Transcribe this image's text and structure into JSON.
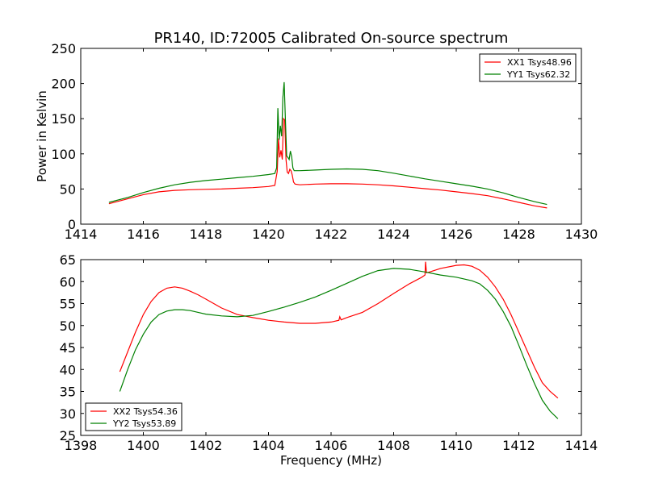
{
  "figure": {
    "title": "PR140, ID:72005 Calibrated On-source spectrum"
  },
  "colors": {
    "red": "#ff0000",
    "green": "#008000"
  },
  "chart_data": [
    {
      "type": "line",
      "title": "PR140, ID:72005 Calibrated On-source spectrum",
      "xlabel": "",
      "ylabel": "Power in Kelvin",
      "xlim": [
        1414,
        1430
      ],
      "ylim": [
        0,
        250
      ],
      "xticks": [
        "1414",
        "1416",
        "1418",
        "1420",
        "1422",
        "1424",
        "1426",
        "1428",
        "1430"
      ],
      "yticks": [
        "0",
        "50",
        "100",
        "150",
        "200",
        "250"
      ],
      "legend_position": "top-right",
      "grid": false,
      "series": [
        {
          "name": "XX1 Tsys48.96",
          "color": "#ff0000",
          "x": [
            1414.9,
            1415.5,
            1416,
            1416.5,
            1417,
            1417.5,
            1418,
            1418.5,
            1419,
            1419.5,
            1420,
            1420.2,
            1420.28,
            1420.32,
            1420.36,
            1420.4,
            1420.44,
            1420.48,
            1420.52,
            1420.56,
            1420.6,
            1420.64,
            1420.68,
            1420.72,
            1420.76,
            1420.8,
            1420.85,
            1421,
            1421.5,
            1422,
            1422.5,
            1423,
            1423.5,
            1424,
            1424.5,
            1425,
            1425.5,
            1426,
            1426.5,
            1427,
            1427.5,
            1428,
            1428.5,
            1428.9
          ],
          "y": [
            29,
            36,
            42,
            46,
            48,
            49,
            49.5,
            50,
            51,
            52,
            53.5,
            55,
            75,
            122,
            95,
            105,
            92,
            150,
            148,
            92,
            74,
            72,
            78,
            76,
            70,
            60,
            57,
            56,
            57,
            57.5,
            57.5,
            57,
            56,
            54.5,
            52.5,
            50.5,
            48.5,
            46,
            43.5,
            40.5,
            36,
            31,
            26,
            23
          ]
        },
        {
          "name": "YY1 Tsys62.32",
          "color": "#008000",
          "x": [
            1414.9,
            1415.5,
            1416,
            1416.5,
            1417,
            1417.5,
            1418,
            1418.5,
            1419,
            1419.5,
            1420,
            1420.2,
            1420.26,
            1420.3,
            1420.34,
            1420.38,
            1420.42,
            1420.46,
            1420.5,
            1420.54,
            1420.58,
            1420.62,
            1420.66,
            1420.7,
            1420.74,
            1420.78,
            1420.82,
            1420.86,
            1421,
            1421.5,
            1422,
            1422.5,
            1423,
            1423.5,
            1424,
            1424.5,
            1425,
            1425.5,
            1426,
            1426.5,
            1427,
            1427.5,
            1428,
            1428.5,
            1428.9
          ],
          "y": [
            31,
            38,
            45,
            51,
            56,
            59.5,
            62,
            64,
            66,
            68,
            70.5,
            72,
            80,
            165,
            120,
            140,
            125,
            180,
            202,
            150,
            97,
            95,
            92,
            104,
            96,
            80,
            76,
            76,
            76,
            77,
            78,
            78.5,
            78,
            76,
            72.5,
            68.5,
            64.5,
            61,
            57.5,
            54,
            50,
            44.5,
            38,
            32,
            28
          ]
        }
      ]
    },
    {
      "type": "line",
      "title": "",
      "xlabel": "Frequency (MHz)",
      "ylabel": "",
      "xlim": [
        1398,
        1414
      ],
      "ylim": [
        25,
        65
      ],
      "xticks": [
        "1398",
        "1400",
        "1402",
        "1404",
        "1406",
        "1408",
        "1410",
        "1412",
        "1414"
      ],
      "yticks": [
        "25",
        "30",
        "35",
        "40",
        "45",
        "50",
        "55",
        "60",
        "65"
      ],
      "legend_position": "bottom-left",
      "grid": false,
      "series": [
        {
          "name": "XX2 Tsys54.36",
          "color": "#ff0000",
          "x": [
            1399.25,
            1399.5,
            1399.75,
            1400,
            1400.25,
            1400.5,
            1400.75,
            1401,
            1401.25,
            1401.5,
            1401.75,
            1402,
            1402.5,
            1403,
            1403.5,
            1404,
            1404.5,
            1405,
            1405.5,
            1406,
            1406.25,
            1406.28,
            1406.32,
            1406.5,
            1407,
            1407.5,
            1408,
            1408.5,
            1408.9,
            1409.0,
            1409.02,
            1409.05,
            1409.2,
            1409.5,
            1410,
            1410.25,
            1410.5,
            1410.75,
            1411,
            1411.25,
            1411.5,
            1411.75,
            1412,
            1412.25,
            1412.5,
            1412.75,
            1413,
            1413.25
          ],
          "y": [
            39.5,
            44,
            48.5,
            52.5,
            55.5,
            57.5,
            58.5,
            58.8,
            58.5,
            57.8,
            57,
            56,
            54,
            52.5,
            51.8,
            51.2,
            50.8,
            50.5,
            50.5,
            50.8,
            51.2,
            52,
            51.3,
            51.8,
            53,
            55,
            57.3,
            59.5,
            61,
            61.5,
            64.5,
            62,
            62.3,
            63,
            63.7,
            63.8,
            63.5,
            62.6,
            61,
            58.8,
            56,
            52.5,
            48.5,
            44.5,
            40.5,
            37,
            35,
            33.5
          ]
        },
        {
          "name": "YY2 Tsys53.89",
          "color": "#008000",
          "x": [
            1399.25,
            1399.5,
            1399.75,
            1400,
            1400.25,
            1400.5,
            1400.75,
            1401,
            1401.25,
            1401.5,
            1401.75,
            1402,
            1402.5,
            1403,
            1403.5,
            1404,
            1404.5,
            1405,
            1405.5,
            1406,
            1406.5,
            1407,
            1407.5,
            1408,
            1408.5,
            1409,
            1409.5,
            1410,
            1410.5,
            1410.75,
            1411,
            1411.25,
            1411.5,
            1411.75,
            1412,
            1412.25,
            1412.5,
            1412.75,
            1413,
            1413.25
          ],
          "y": [
            35,
            40,
            44.5,
            48,
            50.8,
            52.5,
            53.3,
            53.6,
            53.6,
            53.4,
            53,
            52.6,
            52.2,
            52,
            52.3,
            53.2,
            54.2,
            55.3,
            56.5,
            58,
            59.6,
            61.2,
            62.5,
            63,
            62.8,
            62.2,
            61.5,
            61,
            60.2,
            59.5,
            58,
            56,
            53.2,
            49.8,
            45.5,
            41,
            36.8,
            33,
            30.5,
            28.8
          ]
        }
      ]
    }
  ]
}
